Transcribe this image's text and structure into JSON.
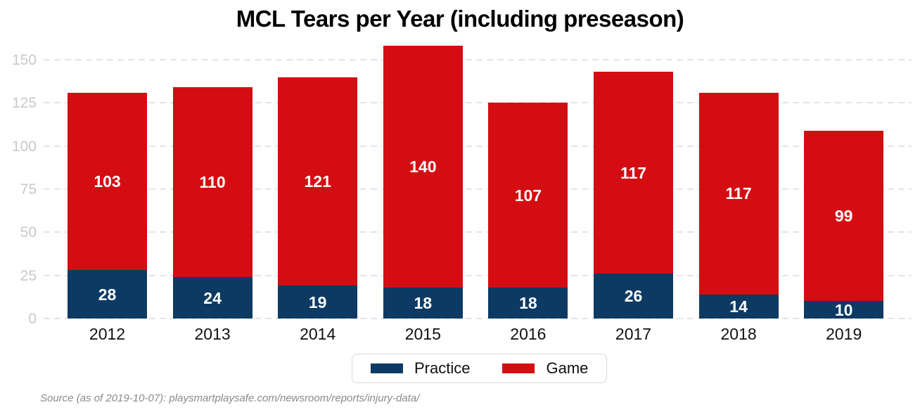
{
  "title": "MCL Tears per Year (including preseason)",
  "source_note": "Source (as of 2019-10-07): playsmartplaysafe.com/newsroom/reports/injury-data/",
  "colors": {
    "practice": "#0c3a63",
    "game": "#d40d12",
    "gridline": "#e4e4e4",
    "y_tick_label": "#c9c9c9",
    "x_tick_label": "#111111",
    "bar_value_label": "#ffffff",
    "legend_border": "#d8d8d8",
    "source_text": "#8a8a8a"
  },
  "legend": {
    "items": [
      {
        "label": "Practice",
        "color": "#0c3a63"
      },
      {
        "label": "Game",
        "color": "#d40d12"
      }
    ],
    "position": "bottom center"
  },
  "chart_data": {
    "type": "bar",
    "stacked": true,
    "title": "MCL Tears per Year (including preseason)",
    "xlabel": "",
    "ylabel": "",
    "categories": [
      "2012",
      "2013",
      "2014",
      "2015",
      "2016",
      "2017",
      "2018",
      "2019"
    ],
    "series": [
      {
        "name": "Practice",
        "color": "#0c3a63",
        "values": [
          28,
          24,
          19,
          18,
          18,
          26,
          14,
          10
        ]
      },
      {
        "name": "Game",
        "color": "#d40d12",
        "values": [
          103,
          110,
          121,
          140,
          107,
          117,
          117,
          99
        ]
      }
    ],
    "totals": [
      131,
      134,
      140,
      158,
      125,
      143,
      131,
      109
    ],
    "yticks": [
      0,
      25,
      50,
      75,
      100,
      125,
      150
    ],
    "ylim": [
      0,
      160
    ],
    "grid": "horizontal dashed",
    "bar_value_labels": "centered inside each segment, white bold",
    "legend_position": "bottom center"
  }
}
